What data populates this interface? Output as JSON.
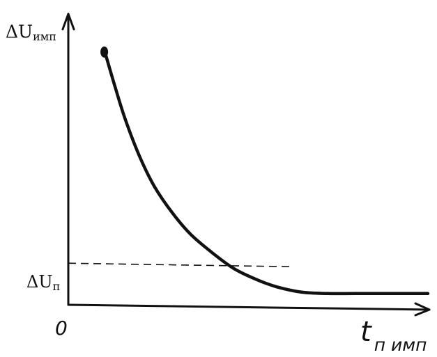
{
  "chart_data": {
    "type": "line",
    "title": "",
    "xlabel_main": "t",
    "xlabel_sub": "п имп",
    "ylabel_main": "ΔU",
    "ylabel_sub": "имп",
    "origin_label": "0",
    "reference_line": {
      "label_main": "ΔU",
      "label_sub": "п",
      "y": 0.15,
      "style": "dashed"
    },
    "xlim": [
      0,
      1
    ],
    "ylim": [
      0,
      1.02
    ],
    "grid": false,
    "legend": "none",
    "axis_ticks": "none",
    "series": [
      {
        "x": [
          0.1,
          0.13,
          0.16,
          0.2,
          0.24,
          0.29,
          0.34,
          0.4,
          0.46,
          0.52,
          0.58,
          0.65,
          0.72,
          0.8,
          0.9,
          1.0
        ],
        "values": [
          0.96,
          0.82,
          0.69,
          0.55,
          0.44,
          0.34,
          0.26,
          0.19,
          0.13,
          0.09,
          0.06,
          0.04,
          0.035,
          0.035,
          0.035,
          0.035
        ]
      }
    ],
    "colors": {
      "ink": "#111111",
      "background": "#ffffff"
    }
  }
}
